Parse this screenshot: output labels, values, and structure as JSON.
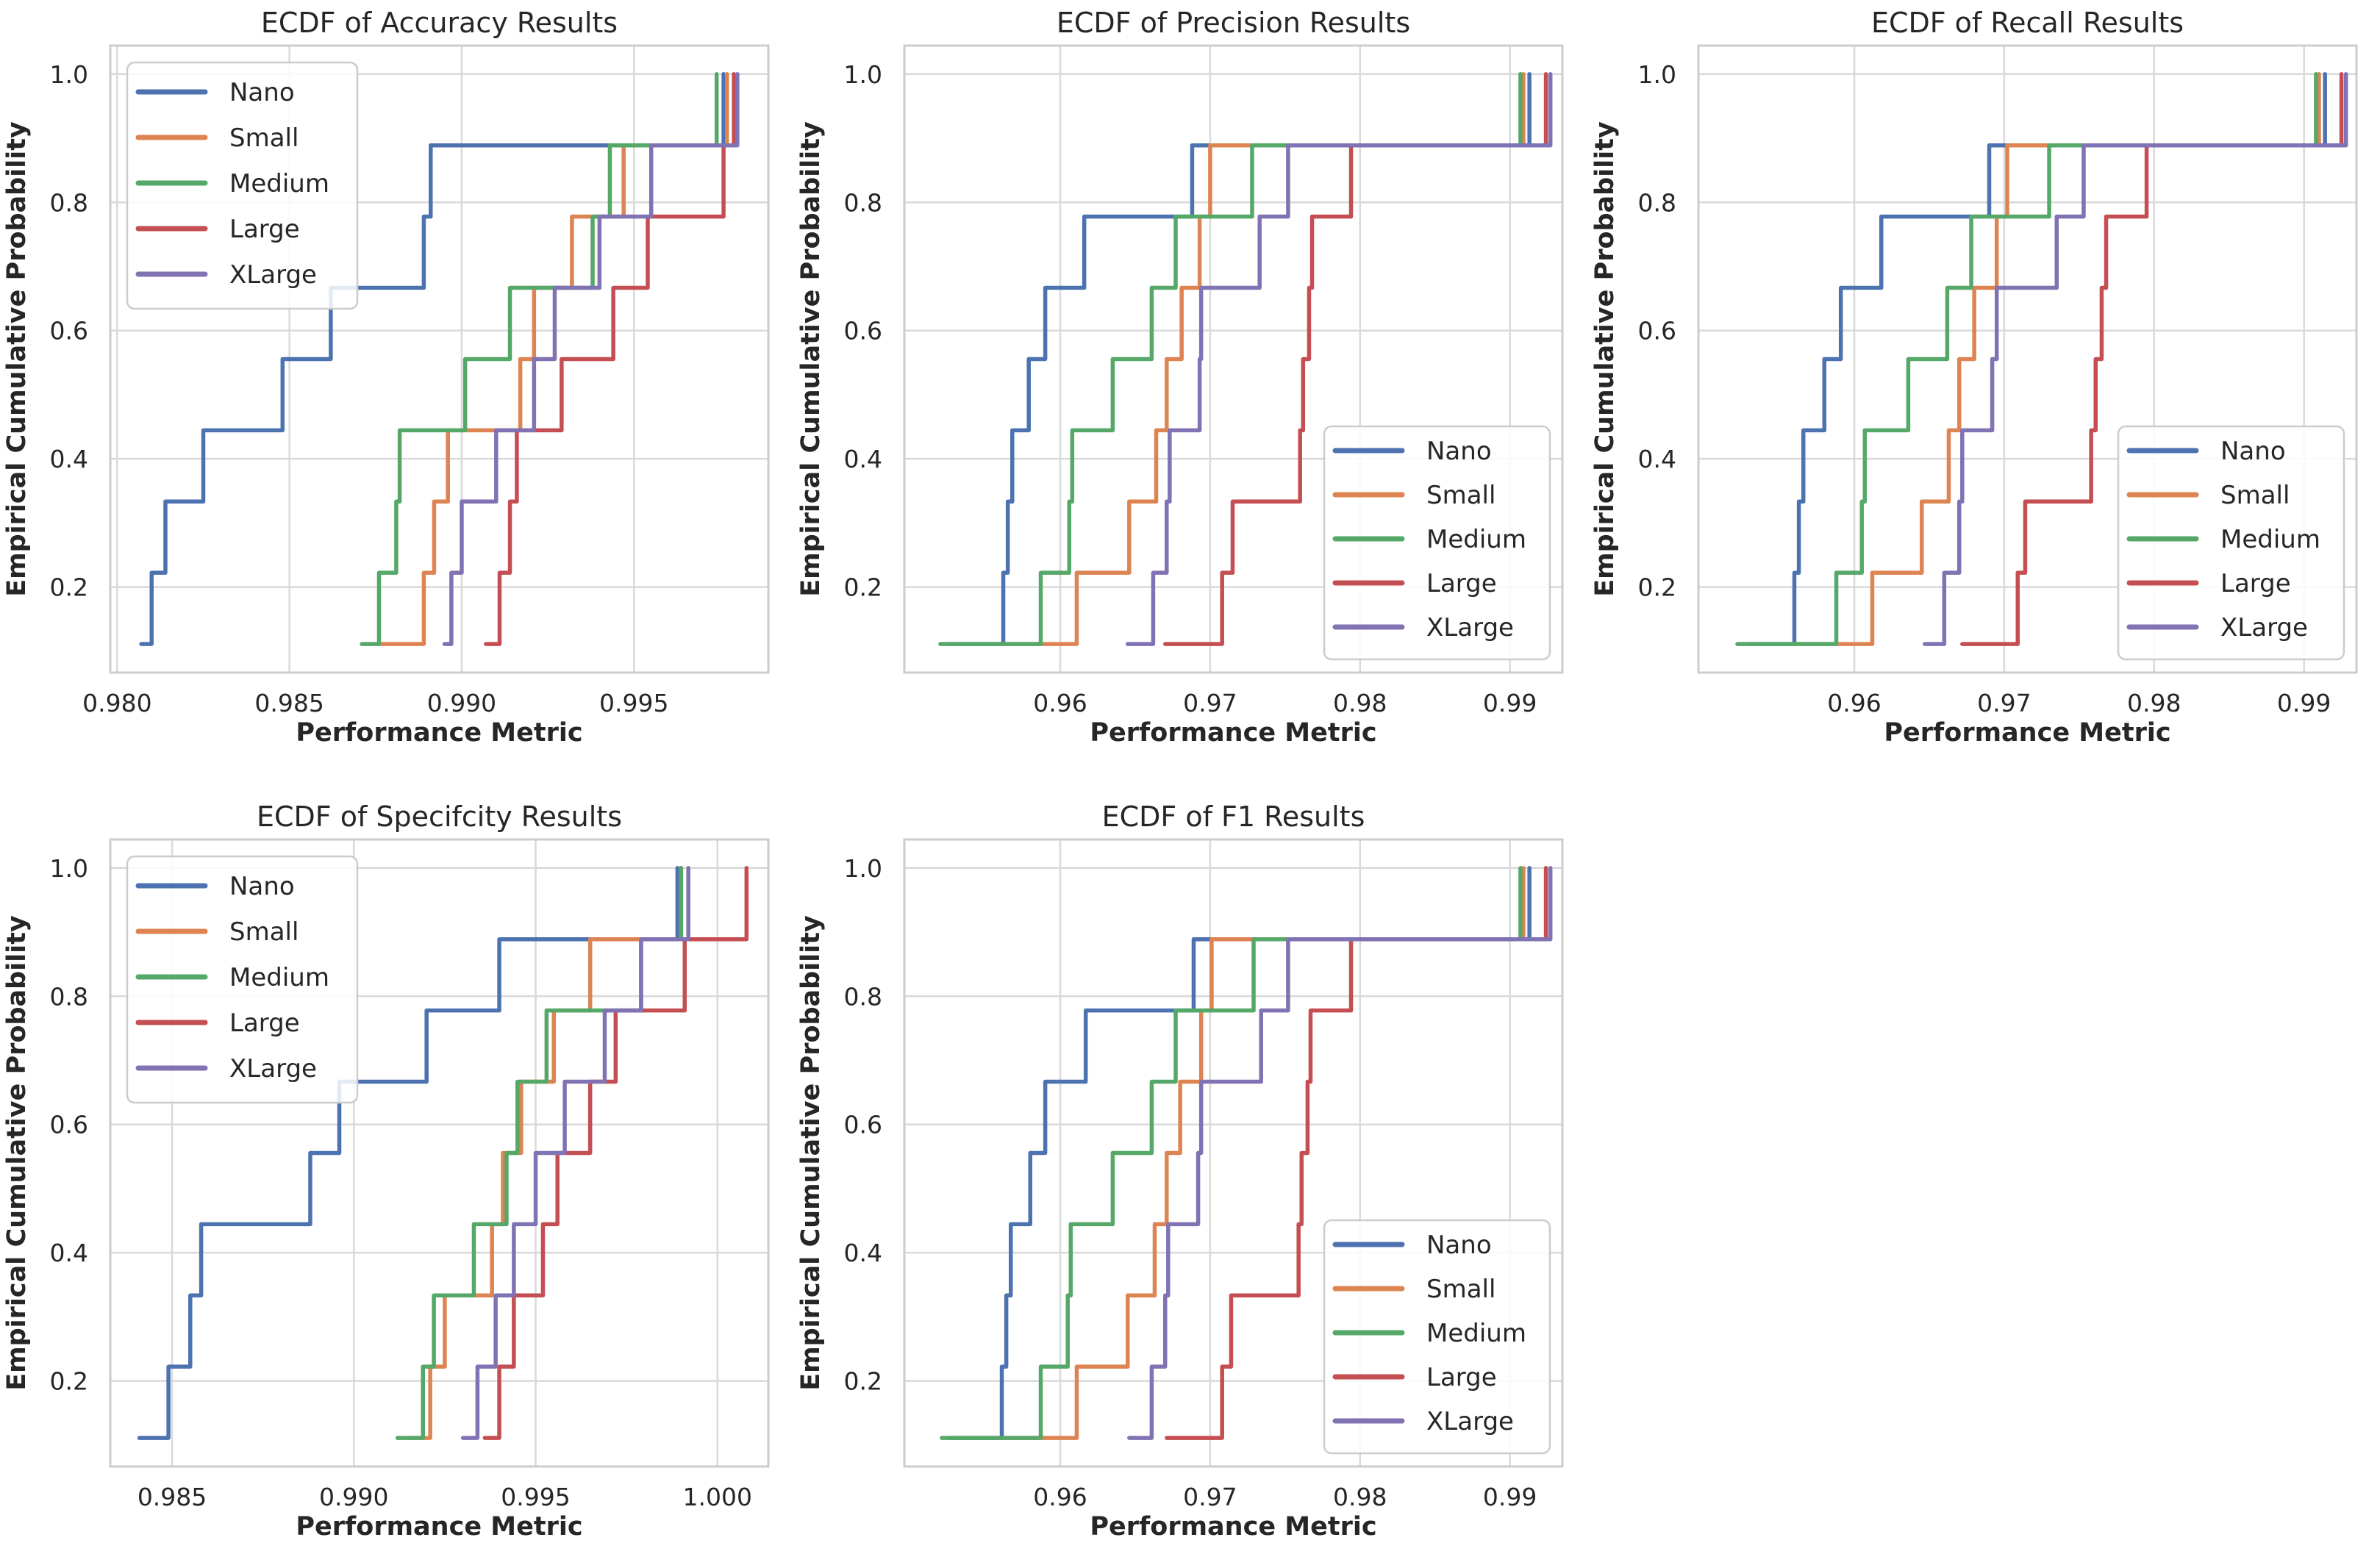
{
  "figure": {
    "background": "#ffffff",
    "text_color": "#262626",
    "grid_color": "#d9d9d9",
    "spine_color": "#cccccc",
    "legend_border_color": "#cccccc",
    "legend_background": "rgba(255,255,255,0.85)"
  },
  "palette": {
    "Nano": "#4C72B0",
    "Small": "#DD8452",
    "Medium": "#55A868",
    "Large": "#C44E52",
    "XLarge": "#8172B3"
  },
  "legend_labels": [
    "Nano",
    "Small",
    "Medium",
    "Large",
    "XLarge"
  ],
  "chart_data": [
    {
      "type": "line",
      "subtype": "ecdf-step",
      "title": "ECDF of Accuracy Results",
      "xlabel": "Performance Metric",
      "ylabel": "Empirical Cumulative Probability",
      "legend_position": "upper-left",
      "grid": true,
      "xlim": [
        0.9798,
        0.9989
      ],
      "ylim": [
        0.0665,
        1.0445
      ],
      "x_ticks": [
        0.98,
        0.985,
        0.99,
        0.995
      ],
      "x_tick_labels": [
        "0.980",
        "0.985",
        "0.990",
        "0.995"
      ],
      "y_ticks": [
        0.2,
        0.4,
        0.6,
        0.8,
        1.0
      ],
      "y_tick_labels": [
        "0.2",
        "0.4",
        "0.6",
        "0.8",
        "1.0"
      ],
      "series": [
        {
          "name": "Nano",
          "color": "#4C72B0",
          "values": [
            0.9807,
            0.981,
            0.9814,
            0.9825,
            0.9848,
            0.9862,
            0.9889,
            0.9891,
            0.9976
          ]
        },
        {
          "name": "Small",
          "color": "#DD8452",
          "values": [
            0.9874,
            0.9889,
            0.9892,
            0.9896,
            0.9917,
            0.9921,
            0.9932,
            0.9947,
            0.9977
          ]
        },
        {
          "name": "Medium",
          "color": "#55A868",
          "values": [
            0.9871,
            0.9876,
            0.9881,
            0.9882,
            0.9901,
            0.9914,
            0.9938,
            0.9943,
            0.9974
          ]
        },
        {
          "name": "Large",
          "color": "#C44E52",
          "values": [
            0.9907,
            0.9911,
            0.9914,
            0.9916,
            0.9929,
            0.9944,
            0.9954,
            0.9976,
            0.9979
          ]
        },
        {
          "name": "XLarge",
          "color": "#8172B3",
          "values": [
            0.9895,
            0.9897,
            0.99,
            0.991,
            0.9921,
            0.9927,
            0.994,
            0.9955,
            0.998
          ]
        }
      ]
    },
    {
      "type": "line",
      "subtype": "ecdf-step",
      "title": "ECDF of Precision Results",
      "xlabel": "Performance Metric",
      "ylabel": "Empirical Cumulative Probability",
      "legend_position": "lower-right",
      "grid": true,
      "xlim": [
        0.9496,
        0.9935
      ],
      "ylim": [
        0.0665,
        1.0445
      ],
      "x_ticks": [
        0.96,
        0.97,
        0.98,
        0.99
      ],
      "x_tick_labels": [
        "0.96",
        "0.97",
        "0.98",
        "0.99"
      ],
      "y_ticks": [
        0.2,
        0.4,
        0.6,
        0.8,
        1.0
      ],
      "y_tick_labels": [
        "0.2",
        "0.4",
        "0.6",
        "0.8",
        "1.0"
      ],
      "series": [
        {
          "name": "Nano",
          "color": "#4C72B0",
          "values": [
            0.9525,
            0.9562,
            0.9565,
            0.9568,
            0.9579,
            0.959,
            0.9616,
            0.9688,
            0.9913
          ]
        },
        {
          "name": "Small",
          "color": "#DD8452",
          "values": [
            0.9558,
            0.9611,
            0.9646,
            0.9664,
            0.9671,
            0.9681,
            0.9693,
            0.97,
            0.9909
          ]
        },
        {
          "name": "Medium",
          "color": "#55A868",
          "values": [
            0.952,
            0.9587,
            0.9606,
            0.9608,
            0.9635,
            0.9661,
            0.9677,
            0.9728,
            0.9907
          ]
        },
        {
          "name": "Large",
          "color": "#C44E52",
          "values": [
            0.967,
            0.9708,
            0.9715,
            0.976,
            0.9762,
            0.9766,
            0.9768,
            0.9794,
            0.9924
          ]
        },
        {
          "name": "XLarge",
          "color": "#8172B3",
          "values": [
            0.9645,
            0.9662,
            0.9671,
            0.9673,
            0.9693,
            0.9694,
            0.9733,
            0.9752,
            0.9927
          ]
        }
      ]
    },
    {
      "type": "line",
      "subtype": "ecdf-step",
      "title": "ECDF of Recall Results",
      "xlabel": "Performance Metric",
      "ylabel": "Empirical Cumulative Probability",
      "legend_position": "lower-right",
      "grid": true,
      "xlim": [
        0.9496,
        0.9935
      ],
      "ylim": [
        0.0665,
        1.0445
      ],
      "x_ticks": [
        0.96,
        0.97,
        0.98,
        0.99
      ],
      "x_tick_labels": [
        "0.96",
        "0.97",
        "0.98",
        "0.99"
      ],
      "y_ticks": [
        0.2,
        0.4,
        0.6,
        0.8,
        1.0
      ],
      "y_tick_labels": [
        "0.2",
        "0.4",
        "0.6",
        "0.8",
        "1.0"
      ],
      "series": [
        {
          "name": "Nano",
          "color": "#4C72B0",
          "values": [
            0.9528,
            0.956,
            0.9563,
            0.9566,
            0.958,
            0.9591,
            0.9618,
            0.969,
            0.9914
          ]
        },
        {
          "name": "Small",
          "color": "#DD8452",
          "values": [
            0.956,
            0.9612,
            0.9645,
            0.9663,
            0.967,
            0.968,
            0.9695,
            0.9702,
            0.991
          ]
        },
        {
          "name": "Medium",
          "color": "#55A868",
          "values": [
            0.9522,
            0.9588,
            0.9605,
            0.9607,
            0.9636,
            0.9662,
            0.9678,
            0.973,
            0.9908
          ]
        },
        {
          "name": "Large",
          "color": "#C44E52",
          "values": [
            0.9672,
            0.9709,
            0.9714,
            0.9758,
            0.9761,
            0.9765,
            0.9768,
            0.9795,
            0.9925
          ]
        },
        {
          "name": "XLarge",
          "color": "#8172B3",
          "values": [
            0.9647,
            0.966,
            0.967,
            0.9672,
            0.9692,
            0.9695,
            0.9735,
            0.9753,
            0.9928
          ]
        }
      ]
    },
    {
      "type": "line",
      "subtype": "ecdf-step",
      "title": "ECDF of Specifcity Results",
      "xlabel": "Performance Metric",
      "ylabel": "Empirical Cumulative Probability",
      "legend_position": "upper-left",
      "grid": true,
      "xlim": [
        0.9833,
        1.0014
      ],
      "ylim": [
        0.0665,
        1.0445
      ],
      "x_ticks": [
        0.985,
        0.99,
        0.995,
        1.0
      ],
      "x_tick_labels": [
        "0.985",
        "0.990",
        "0.995",
        "1.000"
      ],
      "y_ticks": [
        0.2,
        0.4,
        0.6,
        0.8,
        1.0
      ],
      "y_tick_labels": [
        "0.2",
        "0.4",
        "0.6",
        "0.8",
        "1.0"
      ],
      "series": [
        {
          "name": "Nano",
          "color": "#4C72B0",
          "values": [
            0.9841,
            0.9849,
            0.9855,
            0.9858,
            0.9888,
            0.9896,
            0.992,
            0.994,
            0.9989
          ]
        },
        {
          "name": "Small",
          "color": "#DD8452",
          "values": [
            0.9915,
            0.9921,
            0.9925,
            0.9938,
            0.9941,
            0.9946,
            0.9955,
            0.9965,
            0.999
          ]
        },
        {
          "name": "Medium",
          "color": "#55A868",
          "values": [
            0.9912,
            0.9919,
            0.9922,
            0.9933,
            0.9942,
            0.9945,
            0.9953,
            0.9979,
            0.999
          ]
        },
        {
          "name": "Large",
          "color": "#C44E52",
          "values": [
            0.9936,
            0.994,
            0.9944,
            0.9952,
            0.9956,
            0.9965,
            0.9972,
            0.9991,
            1.0008
          ]
        },
        {
          "name": "XLarge",
          "color": "#8172B3",
          "values": [
            0.993,
            0.9934,
            0.9939,
            0.9944,
            0.995,
            0.9958,
            0.9969,
            0.9979,
            0.9992
          ]
        }
      ]
    },
    {
      "type": "line",
      "subtype": "ecdf-step",
      "title": "ECDF of F1 Results",
      "xlabel": "Performance Metric",
      "ylabel": "Empirical Cumulative Probability",
      "legend_position": "lower-right",
      "grid": true,
      "xlim": [
        0.9496,
        0.9935
      ],
      "ylim": [
        0.0665,
        1.0445
      ],
      "x_ticks": [
        0.96,
        0.97,
        0.98,
        0.99
      ],
      "x_tick_labels": [
        "0.96",
        "0.97",
        "0.98",
        "0.99"
      ],
      "y_ticks": [
        0.2,
        0.4,
        0.6,
        0.8,
        1.0
      ],
      "y_tick_labels": [
        "0.2",
        "0.4",
        "0.6",
        "0.8",
        "1.0"
      ],
      "series": [
        {
          "name": "Nano",
          "color": "#4C72B0",
          "values": [
            0.9526,
            0.9561,
            0.9564,
            0.9567,
            0.958,
            0.959,
            0.9617,
            0.9689,
            0.9913
          ]
        },
        {
          "name": "Small",
          "color": "#DD8452",
          "values": [
            0.9559,
            0.9611,
            0.9645,
            0.9663,
            0.9671,
            0.968,
            0.9694,
            0.9701,
            0.9909
          ]
        },
        {
          "name": "Medium",
          "color": "#55A868",
          "values": [
            0.9521,
            0.9587,
            0.9605,
            0.9607,
            0.9635,
            0.9661,
            0.9677,
            0.9729,
            0.9907
          ]
        },
        {
          "name": "Large",
          "color": "#C44E52",
          "values": [
            0.9671,
            0.9708,
            0.9714,
            0.9759,
            0.9761,
            0.9765,
            0.9767,
            0.9794,
            0.9924
          ]
        },
        {
          "name": "XLarge",
          "color": "#8172B3",
          "values": [
            0.9646,
            0.9661,
            0.967,
            0.9672,
            0.9692,
            0.9694,
            0.9734,
            0.9752,
            0.9927
          ]
        }
      ]
    }
  ]
}
